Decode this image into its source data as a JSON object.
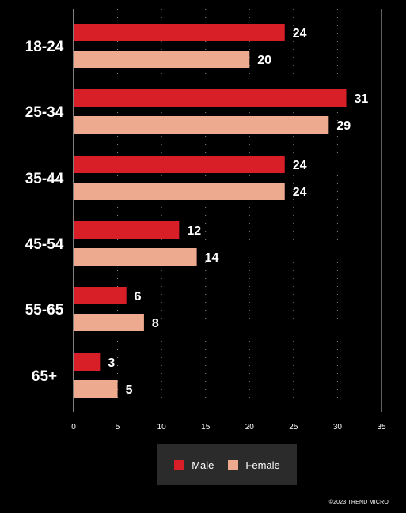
{
  "chart_data": {
    "type": "bar",
    "orientation": "horizontal",
    "categories": [
      "18-24",
      "25-34",
      "35-44",
      "45-54",
      "55-65",
      "65+"
    ],
    "series": [
      {
        "name": "Male",
        "values": [
          24,
          31,
          24,
          12,
          6,
          3
        ]
      },
      {
        "name": "Female",
        "values": [
          20,
          29,
          24,
          14,
          8,
          5
        ]
      }
    ],
    "xlim": [
      0,
      35
    ],
    "x_ticks": [
      "0",
      "5",
      "10",
      "15",
      "20",
      "25",
      "30",
      "35"
    ],
    "grid": "dotted vertical",
    "legend_position": "bottom-center"
  },
  "legend": {
    "items": [
      {
        "label": "Male"
      },
      {
        "label": "Female"
      }
    ]
  },
  "colors": {
    "male": "#d81e26",
    "female": "#eeaa8e",
    "background": "#000000",
    "legend_bg": "#2b2b2b",
    "text": "#ffffff"
  },
  "footer": {
    "copyright": "©2023 TREND MICRO"
  }
}
